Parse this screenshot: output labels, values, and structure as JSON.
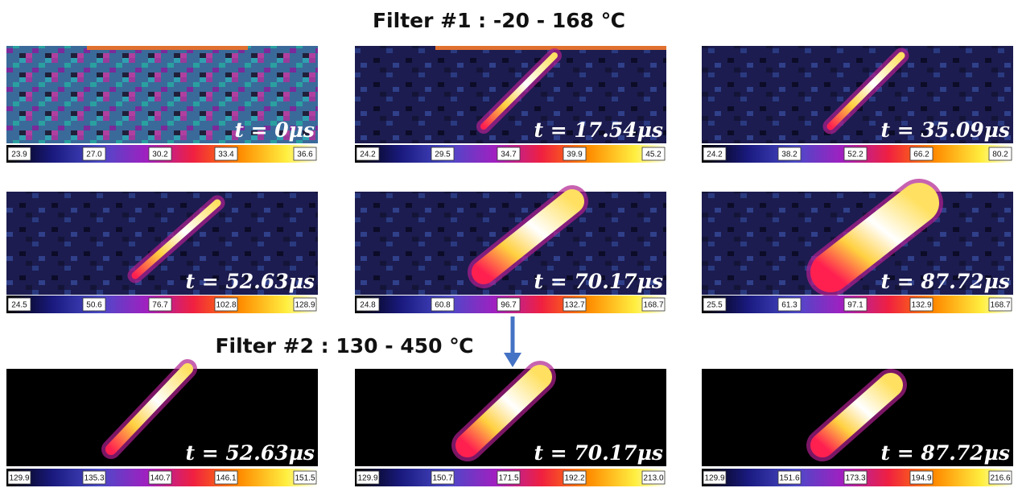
{
  "title_1": "Filter #1 : -20  - 168 ℃",
  "title_2": "Filter #2 : 130  - 450 ℃",
  "rows": [
    [
      {
        "time": "t = 0μs",
        "scale": [
          "23.9",
          "27.0",
          "30.2",
          "33.4",
          "36.6"
        ]
      },
      {
        "time": "t = 17.54μs",
        "scale": [
          "24.2",
          "29.5",
          "34.7",
          "39.9",
          "45.2"
        ]
      },
      {
        "time": "t = 35.09μs",
        "scale": [
          "24.2",
          "38.2",
          "52.2",
          "66.2",
          "80.2"
        ]
      }
    ],
    [
      {
        "time": "t = 52.63μs",
        "scale": [
          "24.5",
          "50.6",
          "76.7",
          "102.8",
          "128.9"
        ]
      },
      {
        "time": "t = 70.17μs",
        "scale": [
          "24.8",
          "60.8",
          "96.7",
          "132.7",
          "168.7"
        ]
      },
      {
        "time": "t = 87.72μs",
        "scale": [
          "25.5",
          "61.3",
          "97.1",
          "132.9",
          "168.7"
        ]
      }
    ],
    [
      {
        "time": "t = 52.63μs",
        "scale": [
          "129.9",
          "135.3",
          "140.7",
          "146.1",
          "151.5"
        ]
      },
      {
        "time": "t = 70.17μs",
        "scale": [
          "129.9",
          "150.7",
          "171.5",
          "192.2",
          "213.0"
        ]
      },
      {
        "time": "t = 87.72μs",
        "scale": [
          "129.9",
          "151.6",
          "173.3",
          "194.9",
          "216.6"
        ]
      }
    ]
  ]
}
